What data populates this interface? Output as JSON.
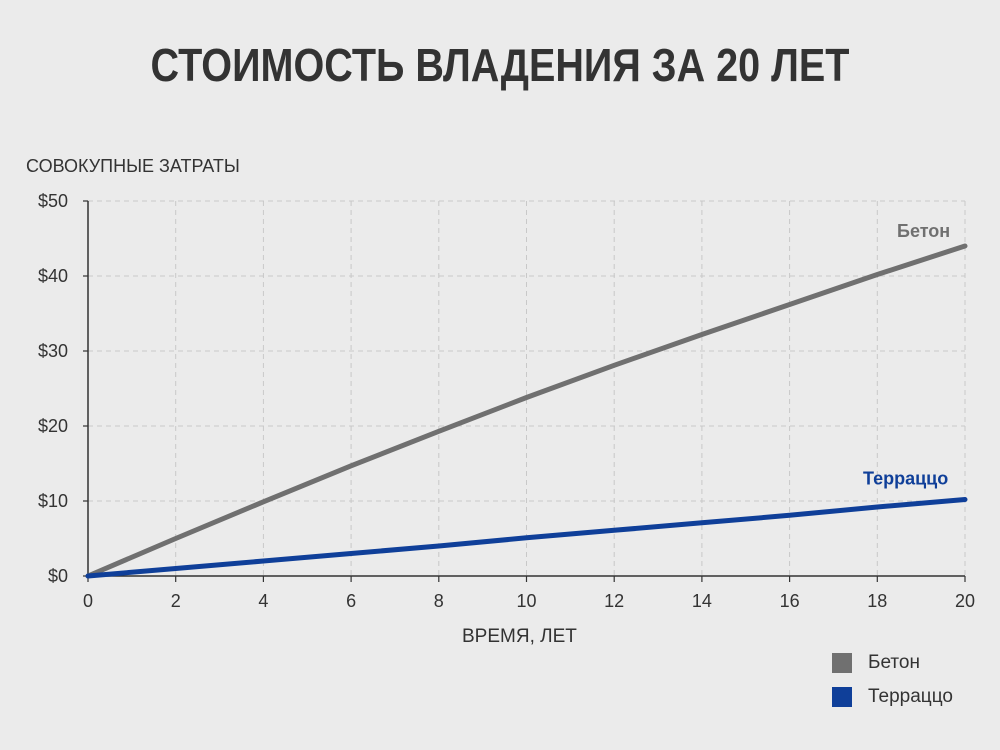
{
  "chart_data": {
    "type": "line",
    "title": "СТОИМОСТЬ ВЛАДЕНИЯ ЗА 20 ЛЕТ",
    "ylabel": "СОВОКУПНЫЕ ЗАТРАТЫ",
    "xlabel": "ВРЕМЯ, ЛЕТ",
    "xlim": [
      0,
      20
    ],
    "ylim": [
      0,
      50
    ],
    "x_ticks": [
      0,
      2,
      4,
      6,
      8,
      10,
      12,
      14,
      16,
      18,
      20
    ],
    "y_ticks": [
      0,
      10,
      20,
      30,
      40,
      50
    ],
    "y_tick_labels": [
      "$0",
      "$10",
      "$20",
      "$30",
      "$40",
      "$50"
    ],
    "grid": true,
    "legend_position": "bottom-right",
    "series": [
      {
        "name": "Бетон",
        "color": "#707070",
        "x": [
          0,
          2,
          4,
          6,
          8,
          10,
          12,
          14,
          16,
          18,
          20
        ],
        "y": [
          0,
          5.0,
          9.9,
          14.7,
          19.3,
          23.8,
          28.1,
          32.2,
          36.2,
          40.2,
          44.0
        ]
      },
      {
        "name": "Терраццо",
        "color": "#0f3f99",
        "x": [
          0,
          2,
          4,
          6,
          8,
          10,
          12,
          14,
          16,
          18,
          20
        ],
        "y": [
          0,
          1.0,
          2.0,
          3.0,
          4.0,
          5.1,
          6.1,
          7.1,
          8.1,
          9.2,
          10.2
        ]
      }
    ],
    "legend": [
      "Бетон",
      "Терраццо"
    ]
  }
}
